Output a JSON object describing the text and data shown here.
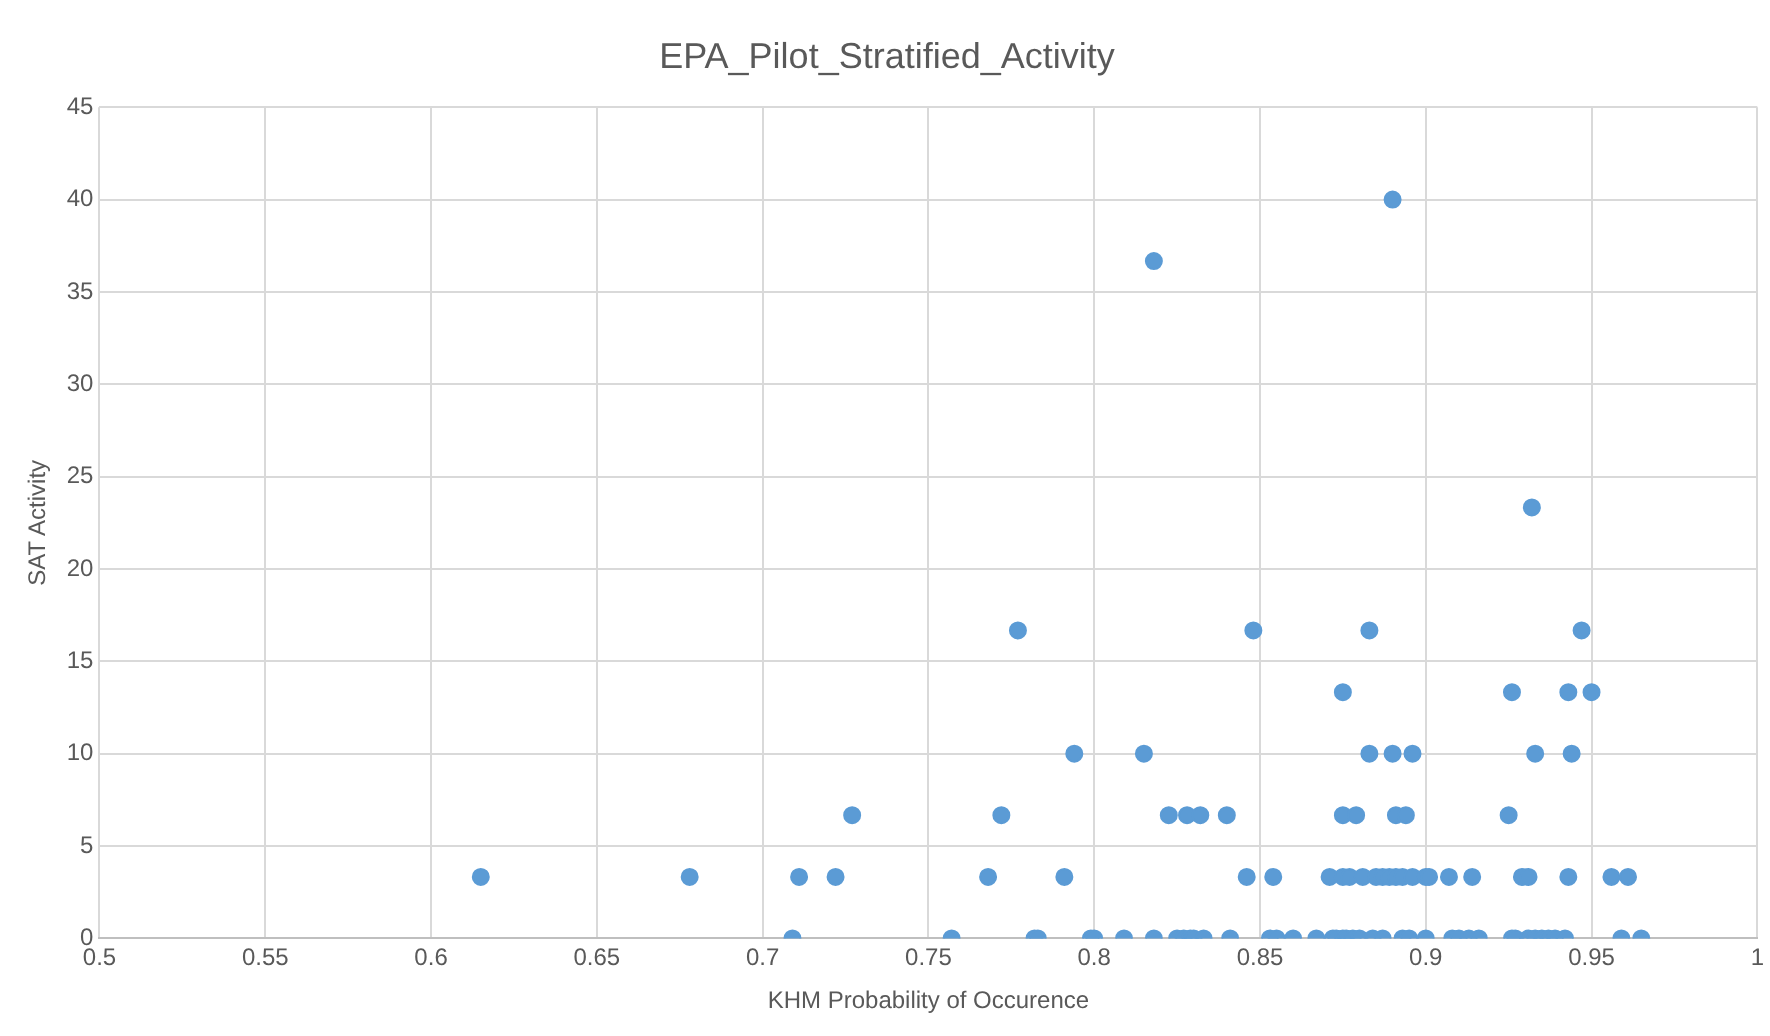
{
  "chart_data": {
    "type": "scatter",
    "title": "EPA_Pilot_Stratified_Activity",
    "xlabel": "KHM Probability of Occurence",
    "ylabel": "SAT Activity",
    "x": [
      0.615,
      0.678,
      0.709,
      0.711,
      0.722,
      0.727,
      0.757,
      0.768,
      0.772,
      0.777,
      0.782,
      0.783,
      0.791,
      0.794,
      0.799,
      0.8,
      0.809,
      0.815,
      0.818,
      0.818,
      0.8225,
      0.825,
      0.827,
      0.829,
      0.83,
      0.833,
      0.828,
      0.832,
      0.84,
      0.841,
      0.846,
      0.848,
      0.853,
      0.855,
      0.854,
      0.86,
      0.867,
      0.871,
      0.872,
      0.873,
      0.875,
      0.876,
      0.878,
      0.88,
      0.875,
      0.875,
      0.879,
      0.875,
      0.877,
      0.881,
      0.883,
      0.883,
      0.884,
      0.887,
      0.885,
      0.887,
      0.889,
      0.891,
      0.893,
      0.89,
      0.89,
      0.891,
      0.894,
      0.893,
      0.895,
      0.896,
      0.896,
      0.9,
      0.901,
      0.9,
      0.907,
      0.908,
      0.91,
      0.913,
      0.916,
      0.914,
      0.925,
      0.926,
      0.926,
      0.927,
      0.929,
      0.931,
      0.931,
      0.933,
      0.935,
      0.937,
      0.939,
      0.942,
      0.932,
      0.933,
      0.943,
      0.943,
      0.944,
      0.947,
      0.95,
      0.956,
      0.961,
      0.959,
      0.965
    ],
    "values": [
      3.33,
      3.33,
      0,
      3.33,
      3.33,
      6.67,
      0,
      3.33,
      6.67,
      16.67,
      0,
      0,
      3.33,
      10,
      0,
      0,
      0,
      10,
      36.67,
      0,
      6.67,
      0,
      0,
      0,
      0,
      0,
      6.67,
      6.67,
      6.67,
      0,
      3.33,
      16.67,
      0,
      0,
      3.33,
      0,
      0,
      3.33,
      0,
      0,
      0,
      0,
      0,
      0,
      13.33,
      6.67,
      6.67,
      3.33,
      3.33,
      3.33,
      16.67,
      10,
      0,
      0,
      3.33,
      3.33,
      3.33,
      3.33,
      3.33,
      40,
      10,
      6.67,
      6.67,
      0,
      0,
      10,
      3.33,
      3.33,
      3.33,
      0,
      3.33,
      0,
      0,
      0,
      0,
      3.33,
      6.67,
      13.33,
      0,
      0,
      3.33,
      3.33,
      0,
      0,
      0,
      0,
      0,
      0,
      23.33,
      10,
      13.33,
      3.33,
      10,
      16.67,
      13.33,
      3.33,
      3.33,
      0,
      0
    ],
    "color": "#5b9bd5",
    "marker": "circle",
    "xlim": [
      0.5,
      1
    ],
    "xticks": [
      0.5,
      0.55,
      0.6,
      0.65,
      0.7,
      0.75,
      0.8,
      0.85,
      0.9,
      0.95,
      1
    ],
    "ylim": [
      0,
      45
    ],
    "yticks": [
      0,
      5,
      10,
      15,
      20,
      25,
      30,
      35,
      40,
      45
    ],
    "grid": true,
    "legend": false
  }
}
